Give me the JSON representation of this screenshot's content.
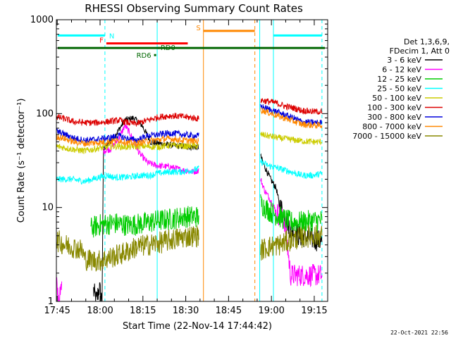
{
  "chart_data": {
    "type": "line",
    "title": "RHESSI Observing Summary Count Rates",
    "xlabel": "Start Time (22-Nov-14 17:44:42)",
    "ylabel": "Count Rate (s⁻¹ detector⁻¹)",
    "yscale": "log",
    "ylim": [
      1,
      1000
    ],
    "xlim_minutes": [
      0,
      95
    ],
    "x_tick_labels": [
      "17:45",
      "18:00",
      "18:15",
      "18:30",
      "18:45",
      "19:00",
      "19:15"
    ],
    "y_tick_labels": [
      "1",
      "10",
      "100",
      "1000"
    ],
    "legend_header": [
      "Det 1,3,6,9,",
      "FDecim 1, Att 0"
    ],
    "legend_position": "right",
    "timestamp": "22-Oct-2021 22:56",
    "series": [
      {
        "name": "3 - 6 keV",
        "color": "#000000",
        "points": [
          [
            13,
            1.3
          ],
          [
            14,
            1
          ],
          [
            15,
            1.4
          ],
          [
            16,
            1
          ],
          [
            16.5,
            42
          ],
          [
            20,
            55
          ],
          [
            24,
            85
          ],
          [
            27,
            90
          ],
          [
            30,
            75
          ],
          [
            33,
            50
          ],
          [
            36,
            48
          ],
          [
            40,
            46
          ],
          [
            44,
            45
          ],
          [
            48,
            44
          ],
          [
            50,
            44
          ],
          [
            71.5,
            35
          ],
          [
            73,
            27
          ],
          [
            75,
            20
          ],
          [
            77,
            16
          ],
          [
            78,
            11
          ],
          [
            80,
            8
          ],
          [
            82,
            6
          ],
          [
            85,
            5
          ],
          [
            88,
            4.8
          ],
          [
            91,
            4.5
          ],
          [
            93,
            4.3
          ]
        ]
      },
      {
        "name": "6 - 12 keV",
        "color": "#ff00ff",
        "points": [
          [
            0,
            1.5
          ],
          [
            1,
            1
          ],
          [
            2,
            1.5
          ],
          [
            16.5,
            40
          ],
          [
            19,
            42
          ],
          [
            22,
            55
          ],
          [
            24,
            75
          ],
          [
            26,
            60
          ],
          [
            29,
            38
          ],
          [
            32,
            30
          ],
          [
            35,
            28
          ],
          [
            40,
            27
          ],
          [
            44,
            25
          ],
          [
            48,
            24
          ],
          [
            50,
            25
          ],
          [
            71.5,
            20
          ],
          [
            73,
            15
          ],
          [
            75,
            12
          ],
          [
            77,
            9
          ],
          [
            80,
            7
          ],
          [
            82,
            1.9
          ],
          [
            87,
            1.9
          ],
          [
            93,
            1.9
          ]
        ]
      },
      {
        "name": "12 - 25 keV",
        "color": "#00cc00",
        "points": [
          [
            12,
            6
          ],
          [
            15,
            6.5
          ],
          [
            20,
            6.8
          ],
          [
            25,
            6.5
          ],
          [
            30,
            6.7
          ],
          [
            35,
            7.2
          ],
          [
            40,
            7.5
          ],
          [
            45,
            8
          ],
          [
            50,
            8
          ],
          [
            71.5,
            11
          ],
          [
            75,
            9
          ],
          [
            78,
            8
          ],
          [
            82,
            7
          ],
          [
            86,
            7
          ],
          [
            90,
            7.2
          ],
          [
            93,
            7.3
          ]
        ]
      },
      {
        "name": "25 - 50 keV",
        "color": "#00ffff",
        "points": [
          [
            0,
            20
          ],
          [
            5,
            20
          ],
          [
            10,
            19
          ],
          [
            15,
            21
          ],
          [
            18,
            22
          ],
          [
            20,
            21
          ],
          [
            25,
            21
          ],
          [
            30,
            22
          ],
          [
            33,
            22
          ],
          [
            35,
            23
          ],
          [
            40,
            24
          ],
          [
            44,
            24
          ],
          [
            48,
            25
          ],
          [
            50,
            26
          ],
          [
            71.5,
            31
          ],
          [
            74,
            28
          ],
          [
            78,
            26
          ],
          [
            82,
            24
          ],
          [
            86,
            22
          ],
          [
            90,
            22
          ],
          [
            93,
            23
          ]
        ]
      },
      {
        "name": "50 - 100 keV",
        "color": "#cccc00",
        "points": [
          [
            0,
            45
          ],
          [
            5,
            42
          ],
          [
            10,
            40
          ],
          [
            15,
            43
          ],
          [
            20,
            45
          ],
          [
            25,
            44
          ],
          [
            30,
            45
          ],
          [
            35,
            44
          ],
          [
            40,
            46
          ],
          [
            45,
            45
          ],
          [
            50,
            45
          ],
          [
            71.5,
            60
          ],
          [
            74,
            58
          ],
          [
            78,
            55
          ],
          [
            82,
            53
          ],
          [
            86,
            51
          ],
          [
            90,
            50
          ],
          [
            93,
            50
          ]
        ]
      },
      {
        "name": "100 - 300 keV",
        "color": "#dd0000",
        "points": [
          [
            0,
            92
          ],
          [
            3,
            88
          ],
          [
            6,
            82
          ],
          [
            10,
            80
          ],
          [
            14,
            80
          ],
          [
            18,
            82
          ],
          [
            22,
            85
          ],
          [
            25,
            80
          ],
          [
            28,
            78
          ],
          [
            32,
            85
          ],
          [
            36,
            92
          ],
          [
            40,
            95
          ],
          [
            44,
            93
          ],
          [
            48,
            90
          ],
          [
            50,
            88
          ],
          [
            71.5,
            140
          ],
          [
            74,
            135
          ],
          [
            77,
            130
          ],
          [
            80,
            120
          ],
          [
            83,
            115
          ],
          [
            86,
            108
          ],
          [
            90,
            105
          ],
          [
            93,
            105
          ]
        ]
      },
      {
        "name": "300 - 800 keV",
        "color": "#0000dd",
        "points": [
          [
            0,
            65
          ],
          [
            3,
            60
          ],
          [
            6,
            55
          ],
          [
            10,
            52
          ],
          [
            14,
            53
          ],
          [
            18,
            55
          ],
          [
            22,
            58
          ],
          [
            25,
            54
          ],
          [
            28,
            52
          ],
          [
            32,
            58
          ],
          [
            36,
            60
          ],
          [
            40,
            62
          ],
          [
            44,
            60
          ],
          [
            48,
            58
          ],
          [
            50,
            58
          ],
          [
            71.5,
            120
          ],
          [
            74,
            112
          ],
          [
            77,
            105
          ],
          [
            80,
            97
          ],
          [
            83,
            90
          ],
          [
            86,
            82
          ],
          [
            90,
            80
          ],
          [
            93,
            80
          ]
        ]
      },
      {
        "name": "800 - 7000 keV",
        "color": "#ff8800",
        "points": [
          [
            0,
            57
          ],
          [
            3,
            54
          ],
          [
            6,
            50
          ],
          [
            10,
            48
          ],
          [
            14,
            49
          ],
          [
            18,
            50
          ],
          [
            22,
            52
          ],
          [
            25,
            49
          ],
          [
            28,
            48
          ],
          [
            32,
            51
          ],
          [
            36,
            53
          ],
          [
            40,
            54
          ],
          [
            44,
            52
          ],
          [
            48,
            51
          ],
          [
            50,
            51
          ],
          [
            71.5,
            110
          ],
          [
            74,
            103
          ],
          [
            77,
            96
          ],
          [
            80,
            89
          ],
          [
            83,
            83
          ],
          [
            86,
            77
          ],
          [
            90,
            75
          ],
          [
            93,
            75
          ]
        ]
      },
      {
        "name": "7000 - 15000 keV",
        "color": "#888800",
        "points": [
          [
            0,
            4.5
          ],
          [
            3,
            4
          ],
          [
            6,
            3.8
          ],
          [
            9,
            3.5
          ],
          [
            10,
            2.8
          ],
          [
            15,
            2.7
          ],
          [
            20,
            3
          ],
          [
            24,
            3.3
          ],
          [
            28,
            3.8
          ],
          [
            32,
            4
          ],
          [
            36,
            4.2
          ],
          [
            40,
            4.5
          ],
          [
            44,
            4.8
          ],
          [
            48,
            5
          ],
          [
            50,
            5
          ],
          [
            71.5,
            3.5
          ],
          [
            74,
            3.8
          ],
          [
            78,
            4
          ],
          [
            82,
            4.5
          ],
          [
            86,
            4.8
          ],
          [
            90,
            5
          ],
          [
            93,
            5
          ]
        ]
      }
    ],
    "annotations": [
      {
        "label": "N",
        "color": "#00ffff",
        "x0": 0,
        "x1": 17,
        "y": 680,
        "dashed_end": true
      },
      {
        "label": "F",
        "color": "#ff0000",
        "x0": 17.5,
        "x1": 46,
        "y": 560
      },
      {
        "label": "S",
        "color": "#ff8800",
        "x0": 51.5,
        "x1": 69.5,
        "y": 760
      },
      {
        "label": "",
        "color": "#00ffff",
        "x0": 76,
        "x1": 93,
        "y": 680,
        "dashed_end": true
      },
      {
        "label": "RD0",
        "color": "#006600",
        "x0": 35.5,
        "x1": 35.6,
        "y": 500
      },
      {
        "label": "RD6",
        "color": "#006600",
        "x0": 34.2,
        "x1": 34.3,
        "y": 420
      }
    ],
    "night_band": {
      "color": "#006600",
      "y": 500
    },
    "vlines": [
      {
        "x": 17,
        "color": "#00ffff",
        "dashed": true
      },
      {
        "x": 35.3,
        "color": "#00ffff",
        "dashed": false
      },
      {
        "x": 51.5,
        "color": "#ff8800",
        "dashed": false
      },
      {
        "x": 69.5,
        "color": "#ff8800",
        "dashed": true
      },
      {
        "x": 71.2,
        "color": "#00ffff",
        "dashed": false
      },
      {
        "x": 76,
        "color": "#00ffff",
        "dashed": false
      },
      {
        "x": 93,
        "color": "#00ffff",
        "dashed": true
      }
    ]
  }
}
